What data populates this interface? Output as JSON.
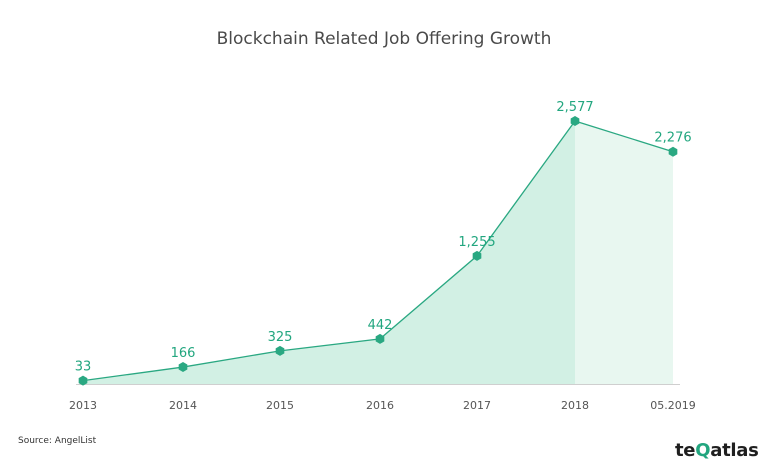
{
  "chart_data": {
    "type": "area",
    "title": "Blockchain Related Job Offering Growth",
    "categories": [
      "2013",
      "2014",
      "2015",
      "2016",
      "2017",
      "2018",
      "05.2019"
    ],
    "values": [
      33,
      166,
      325,
      442,
      1255,
      2577,
      2276
    ],
    "value_labels": [
      "33",
      "166",
      "325",
      "442",
      "1,255",
      "2,577",
      "2,276"
    ],
    "ylim": [
      0,
      2577
    ],
    "grid": false,
    "legend": "none",
    "colors": {
      "line": "#2aa882",
      "fill": "#d2f0e4",
      "fill_partial": "#e8f7f0",
      "label": "#22a67f",
      "axis": "#cfcfcf",
      "tick_text": "#555555"
    }
  },
  "source": "Source: AngelList",
  "logo": {
    "prefix": "te",
    "highlight": "Q",
    "suffix": "atlas"
  }
}
